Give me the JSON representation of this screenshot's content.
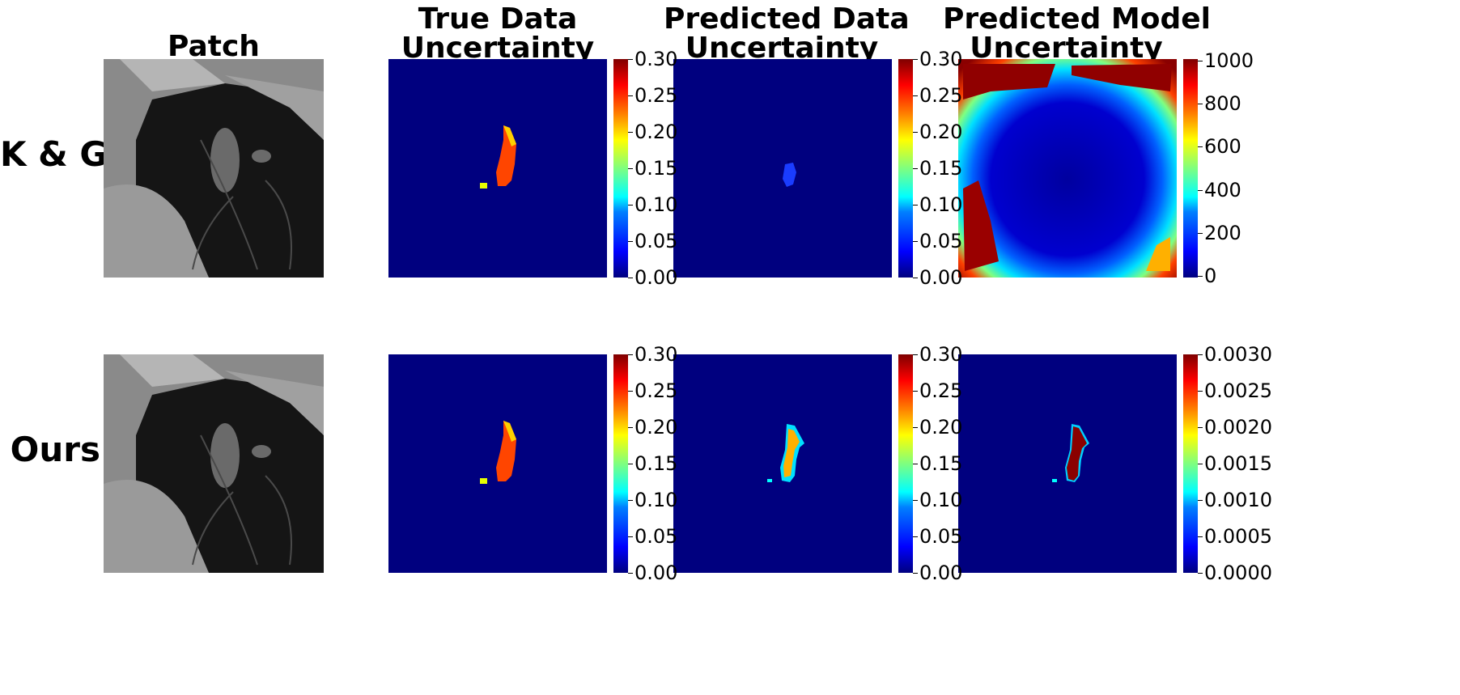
{
  "columns": {
    "patch": [
      "Patch"
    ],
    "true_data": [
      "True Data",
      "Uncertainty"
    ],
    "pred_data": [
      "Predicted Data",
      "Uncertainty"
    ],
    "pred_model": [
      "Predicted Model",
      "Uncertainty"
    ]
  },
  "rows": {
    "kg": "K & G",
    "ours": "Ours"
  },
  "colorbars": {
    "kg_true": [
      "0.30",
      "0.25",
      "0.20",
      "0.15",
      "0.10",
      "0.05",
      "0.00"
    ],
    "kg_pred": [
      "0.30",
      "0.25",
      "0.20",
      "0.15",
      "0.10",
      "0.05",
      "0.00"
    ],
    "kg_model": [
      "1000",
      "800",
      "600",
      "400",
      "200",
      "0"
    ],
    "ours_true": [
      "0.30",
      "0.25",
      "0.20",
      "0.15",
      "0.10",
      "0.05",
      "0.00"
    ],
    "ours_pred": [
      "0.30",
      "0.25",
      "0.20",
      "0.15",
      "0.10",
      "0.05",
      "0.00"
    ],
    "ours_model": [
      "0.0030",
      "0.0025",
      "0.0020",
      "0.0015",
      "0.0010",
      "0.0005",
      "0.0000"
    ]
  },
  "colors": {
    "background_low": "#00007f",
    "high": "#7f0000"
  }
}
